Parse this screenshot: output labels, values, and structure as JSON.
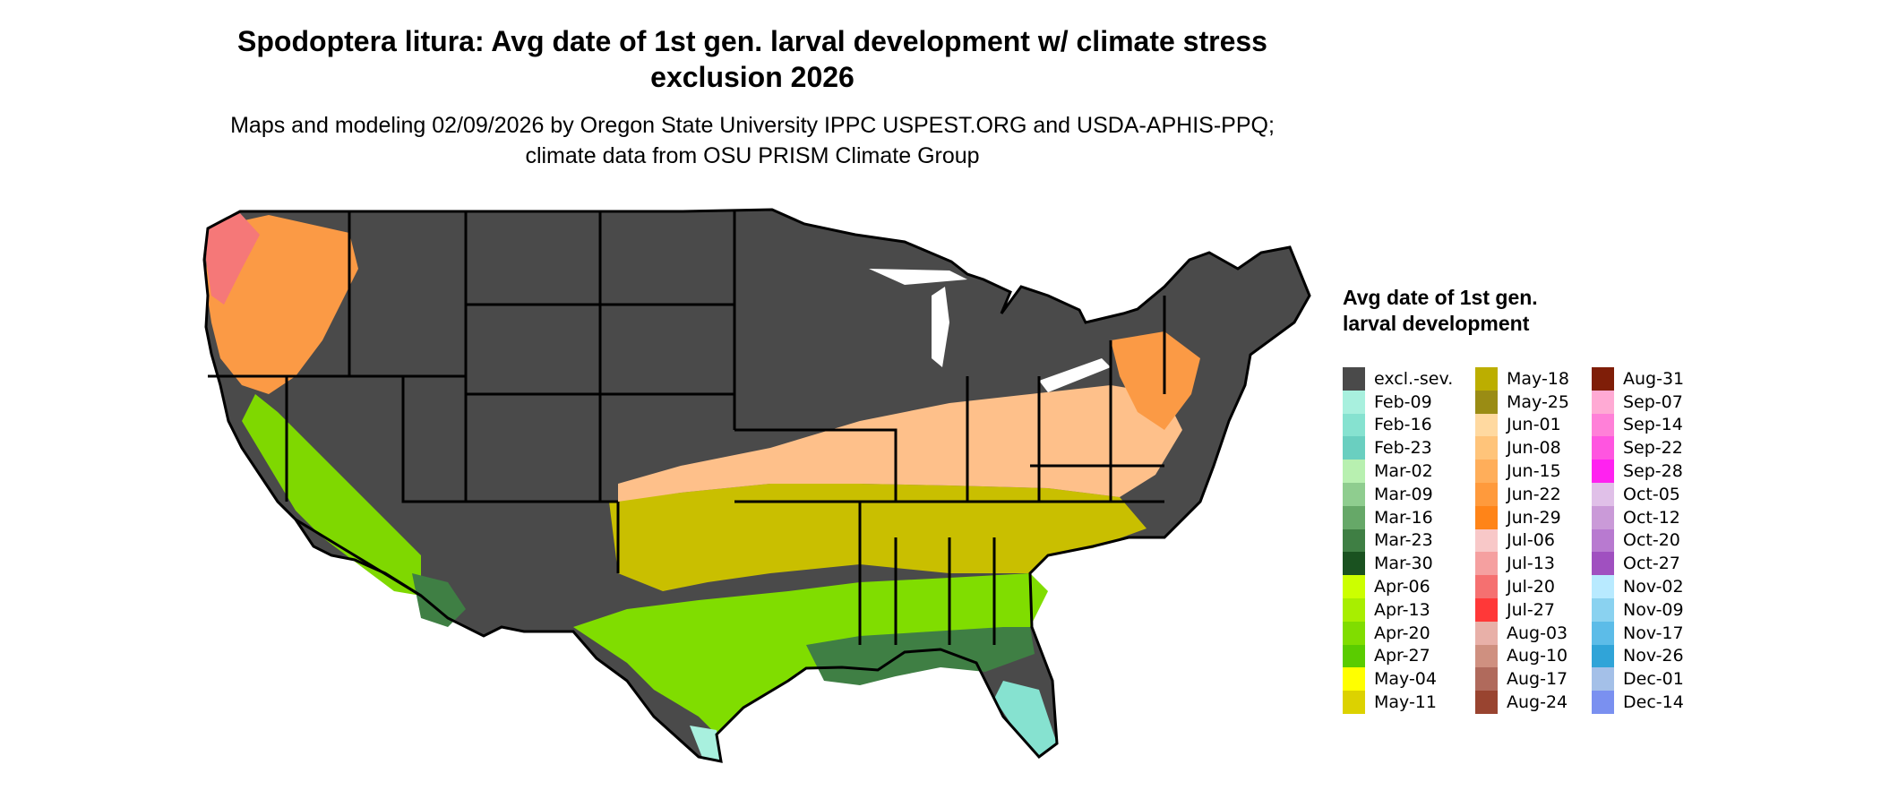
{
  "title": "Spodoptera litura: Avg date of 1st gen. larval development w/ climate stress exclusion 2026",
  "subtitle": "Maps and modeling 02/09/2026 by Oregon State University IPPC USPEST.ORG and USDA-APHIS-PPQ; climate data from OSU PRISM Climate Group",
  "legend": {
    "title": "Avg date of 1st gen. larval development",
    "items": [
      {
        "label": "excl.-sev.",
        "color": "#4a4a4a"
      },
      {
        "label": "Feb-09",
        "color": "#a8f0de"
      },
      {
        "label": "Feb-16",
        "color": "#86e2d0"
      },
      {
        "label": "Feb-23",
        "color": "#6acfc0"
      },
      {
        "label": "Mar-02",
        "color": "#b8f0b0"
      },
      {
        "label": "Mar-09",
        "color": "#8fcd8f"
      },
      {
        "label": "Mar-16",
        "color": "#66a868"
      },
      {
        "label": "Mar-23",
        "color": "#3f7f44"
      },
      {
        "label": "Mar-30",
        "color": "#1a5220"
      },
      {
        "label": "Apr-06",
        "color": "#ccff00"
      },
      {
        "label": "Apr-13",
        "color": "#a8ee00"
      },
      {
        "label": "Apr-20",
        "color": "#80dd00"
      },
      {
        "label": "Apr-27",
        "color": "#5acc00"
      },
      {
        "label": "May-04",
        "color": "#ffff00"
      },
      {
        "label": "May-11",
        "color": "#dcd200"
      },
      {
        "label": "May-18",
        "color": "#bcae00"
      },
      {
        "label": "May-25",
        "color": "#9a8c14"
      },
      {
        "label": "Jun-01",
        "color": "#ffd9a0"
      },
      {
        "label": "Jun-08",
        "color": "#ffc47a"
      },
      {
        "label": "Jun-15",
        "color": "#ffae5a"
      },
      {
        "label": "Jun-22",
        "color": "#ff9a3c"
      },
      {
        "label": "Jun-29",
        "color": "#ff8418"
      },
      {
        "label": "Jul-06",
        "color": "#f8c8c8"
      },
      {
        "label": "Jul-13",
        "color": "#f5a0a0"
      },
      {
        "label": "Jul-20",
        "color": "#f57070"
      },
      {
        "label": "Jul-27",
        "color": "#ff3838"
      },
      {
        "label": "Aug-03",
        "color": "#e8b0a8"
      },
      {
        "label": "Aug-10",
        "color": "#cf9080"
      },
      {
        "label": "Aug-17",
        "color": "#b06a5c"
      },
      {
        "label": "Aug-24",
        "color": "#994430"
      },
      {
        "label": "Aug-31",
        "color": "#7f1e08"
      },
      {
        "label": "Sep-07",
        "color": "#ffaad4"
      },
      {
        "label": "Sep-14",
        "color": "#ff80d8"
      },
      {
        "label": "Sep-22",
        "color": "#ff55e0"
      },
      {
        "label": "Sep-28",
        "color": "#ff22f0"
      },
      {
        "label": "Oct-05",
        "color": "#e0c0e8"
      },
      {
        "label": "Oct-12",
        "color": "#ca9ad8"
      },
      {
        "label": "Oct-20",
        "color": "#b87ad0"
      },
      {
        "label": "Oct-27",
        "color": "#a050c0"
      },
      {
        "label": "Nov-02",
        "color": "#b8eaff"
      },
      {
        "label": "Nov-09",
        "color": "#8ad2f0"
      },
      {
        "label": "Nov-17",
        "color": "#5cbce8"
      },
      {
        "label": "Nov-26",
        "color": "#30a4d8"
      },
      {
        "label": "Dec-01",
        "color": "#a4c0e8"
      },
      {
        "label": "Dec-14",
        "color": "#7a90f0"
      }
    ]
  }
}
